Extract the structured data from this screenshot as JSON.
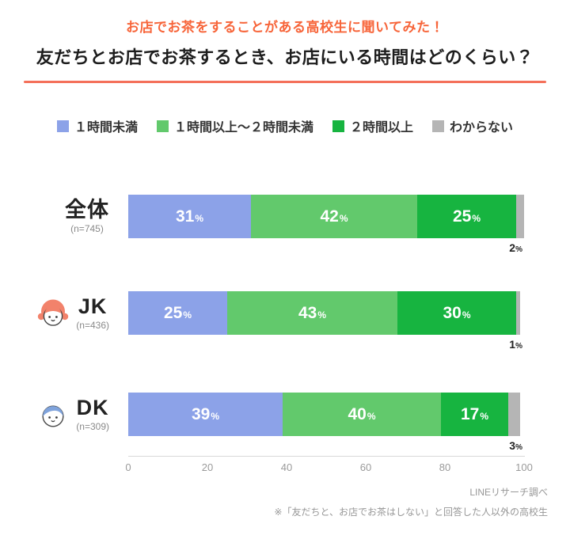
{
  "colors": {
    "kicker": "#F7653A",
    "rule": "#F4705A",
    "axis_text": "#9A9A9A",
    "footer_text": "#979797"
  },
  "header": {
    "kicker": "お店でお茶をすることがある高校生に聞いてみた！",
    "title": "友だちとお店でお茶するとき、お店にいる時間はどのくらい？"
  },
  "chart_data": {
    "type": "bar",
    "orientation": "horizontal",
    "stacked": true,
    "title": "友だちとお店でお茶するとき、お店にいる時間はどのくらい？",
    "legend_position": "top",
    "categories": [
      "全体",
      "JK",
      "DK"
    ],
    "category_sublabels": [
      "(n=745)",
      "(n=436)",
      "(n=309)"
    ],
    "category_icons": [
      null,
      "jk-girl",
      "dk-boy"
    ],
    "series": [
      {
        "name": "１時間未満",
        "color": "#8CA2E8",
        "values": [
          31,
          25,
          39
        ]
      },
      {
        "name": "１時間以上〜２時間未満",
        "color": "#62C96C",
        "values": [
          42,
          43,
          40
        ]
      },
      {
        "name": "２時間以上",
        "color": "#17B440",
        "values": [
          25,
          30,
          17
        ]
      },
      {
        "name": "わからない",
        "color": "#B5B5B5",
        "values": [
          2,
          1,
          3
        ],
        "label_outside": true
      }
    ],
    "value_suffix": "%",
    "xlim": [
      0,
      100
    ],
    "x_ticks": [
      0,
      20,
      40,
      60,
      80,
      100
    ]
  },
  "footer": {
    "source": "LINEリサーチ調べ",
    "note": "※「友だちと、お店でお茶はしない」と回答した人以外の高校生"
  }
}
